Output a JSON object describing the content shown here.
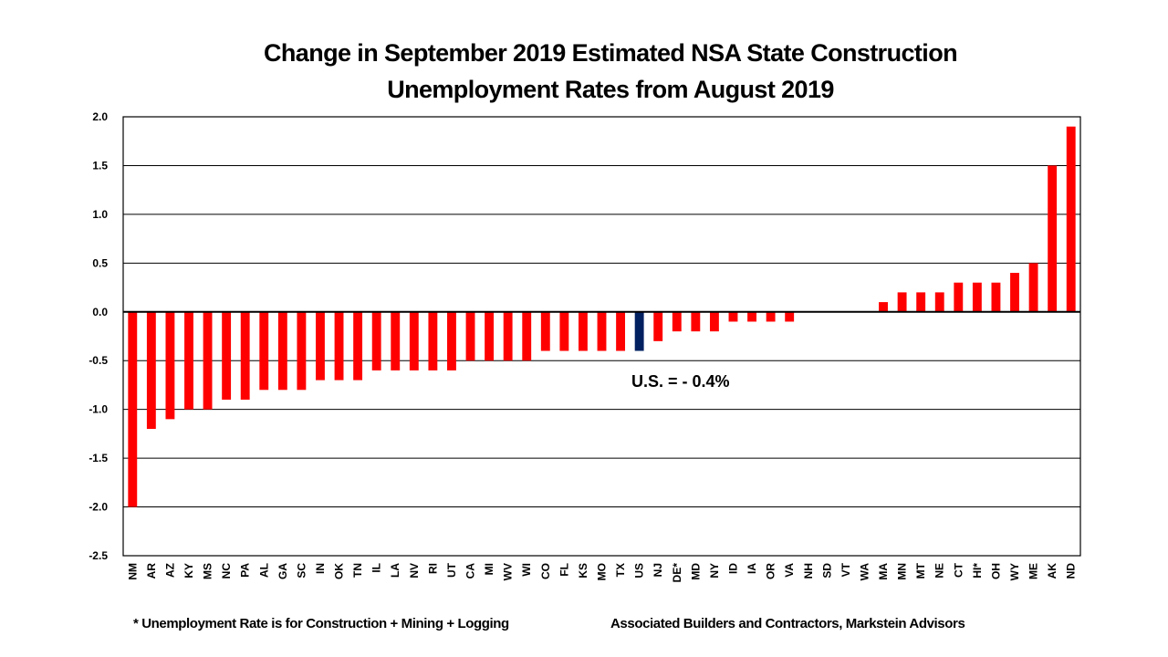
{
  "chart_data": {
    "type": "bar",
    "title": "Change in September 2019 Estimated NSA State Construction Unemployment Rates from August 2019",
    "title_lines": [
      "Change in September 2019 Estimated NSA State Construction",
      "Unemployment Rates from August 2019"
    ],
    "xlabel": "",
    "ylabel": "",
    "ylim": [
      -2.5,
      2.0
    ],
    "yticks": [
      2.0,
      1.5,
      1.0,
      0.5,
      0.0,
      -0.5,
      -1.0,
      -1.5,
      -2.0,
      -2.5
    ],
    "ytick_labels": [
      "2.0",
      "1.5",
      "1.0",
      "0.5",
      "0.0",
      "-0.5",
      "-1.0",
      "-1.5",
      "-2.0",
      "-2.5"
    ],
    "grid": true,
    "categories": [
      "NM",
      "AR",
      "AZ",
      "KY",
      "MS",
      "NC",
      "PA",
      "AL",
      "GA",
      "SC",
      "IN",
      "OK",
      "TN",
      "IL",
      "LA",
      "NV",
      "RI",
      "UT",
      "CA",
      "MI",
      "WV",
      "WI",
      "CO",
      "FL",
      "KS",
      "MO",
      "TX",
      "US",
      "NJ",
      "DE*",
      "MD",
      "NY",
      "ID",
      "IA",
      "OR",
      "VA",
      "NH",
      "SD",
      "VT",
      "WA",
      "MA",
      "MN",
      "MT",
      "NE",
      "CT",
      "HI*",
      "OH",
      "WY",
      "ME",
      "AK",
      "ND"
    ],
    "values": [
      -2.0,
      -1.2,
      -1.1,
      -1.0,
      -1.0,
      -0.9,
      -0.9,
      -0.8,
      -0.8,
      -0.8,
      -0.7,
      -0.7,
      -0.7,
      -0.6,
      -0.6,
      -0.6,
      -0.6,
      -0.6,
      -0.5,
      -0.5,
      -0.5,
      -0.5,
      -0.4,
      -0.4,
      -0.4,
      -0.4,
      -0.4,
      -0.4,
      -0.3,
      -0.2,
      -0.2,
      -0.2,
      -0.1,
      -0.1,
      -0.1,
      -0.1,
      0.0,
      0.0,
      0.0,
      0.0,
      0.1,
      0.2,
      0.2,
      0.2,
      0.3,
      0.3,
      0.3,
      0.4,
      0.5,
      1.5,
      1.9
    ],
    "highlight_category": "US",
    "colors": {
      "bar": "#ff0000",
      "highlight": "#002060",
      "grid": "#000000"
    },
    "annotations": [
      "U.S. = - 0.4%"
    ],
    "legend": null
  },
  "footer": {
    "note": "* Unemployment Rate is for Construction + Mining + Logging",
    "source": "Associated Builders and Contractors, Markstein Advisors"
  }
}
